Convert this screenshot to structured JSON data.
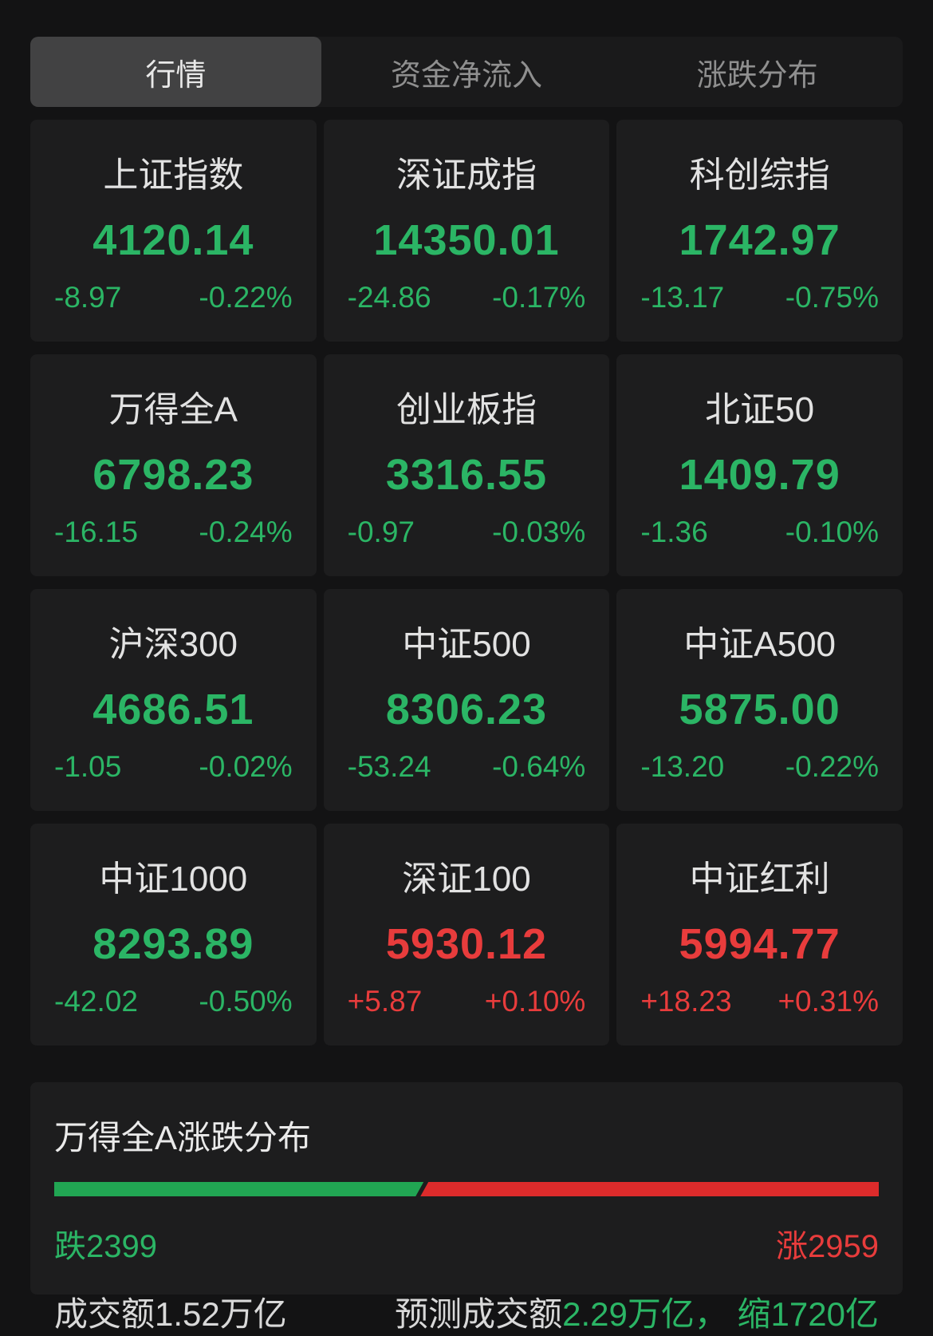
{
  "tabs": {
    "market": "行情",
    "net_inflow": "资金净流入",
    "distribution": "涨跌分布"
  },
  "indices": [
    {
      "name": "上证指数",
      "value": "4120.14",
      "change": "-8.97",
      "change_pct": "-0.22%",
      "direction": "down"
    },
    {
      "name": "深证成指",
      "value": "14350.01",
      "change": "-24.86",
      "change_pct": "-0.17%",
      "direction": "down"
    },
    {
      "name": "科创综指",
      "value": "1742.97",
      "change": "-13.17",
      "change_pct": "-0.75%",
      "direction": "down"
    },
    {
      "name": "万得全A",
      "value": "6798.23",
      "change": "-16.15",
      "change_pct": "-0.24%",
      "direction": "down"
    },
    {
      "name": "创业板指",
      "value": "3316.55",
      "change": "-0.97",
      "change_pct": "-0.03%",
      "direction": "down"
    },
    {
      "name": "北证50",
      "value": "1409.79",
      "change": "-1.36",
      "change_pct": "-0.10%",
      "direction": "down"
    },
    {
      "name": "沪深300",
      "value": "4686.51",
      "change": "-1.05",
      "change_pct": "-0.02%",
      "direction": "down"
    },
    {
      "name": "中证500",
      "value": "8306.23",
      "change": "-53.24",
      "change_pct": "-0.64%",
      "direction": "down"
    },
    {
      "name": "中证A500",
      "value": "5875.00",
      "change": "-13.20",
      "change_pct": "-0.22%",
      "direction": "down"
    },
    {
      "name": "中证1000",
      "value": "8293.89",
      "change": "-42.02",
      "change_pct": "-0.50%",
      "direction": "down"
    },
    {
      "name": "深证100",
      "value": "5930.12",
      "change": "+5.87",
      "change_pct": "+0.10%",
      "direction": "up"
    },
    {
      "name": "中证红利",
      "value": "5994.77",
      "change": "+18.23",
      "change_pct": "+0.31%",
      "direction": "up"
    }
  ],
  "distribution": {
    "title": "万得全A涨跌分布",
    "decliners": 2399,
    "advancers": 2959,
    "decliners_label": "跌2399",
    "advancers_label": "涨2959",
    "turnover": "成交额1.52万亿",
    "forecast_prefix": "预测成交额",
    "forecast_highlight": "2.29万亿， 缩1720亿"
  },
  "colors": {
    "down_green": "#2bb565",
    "up_red": "#e83c3c",
    "bar_green": "#21a653",
    "bar_red": "#dd2b2b"
  }
}
